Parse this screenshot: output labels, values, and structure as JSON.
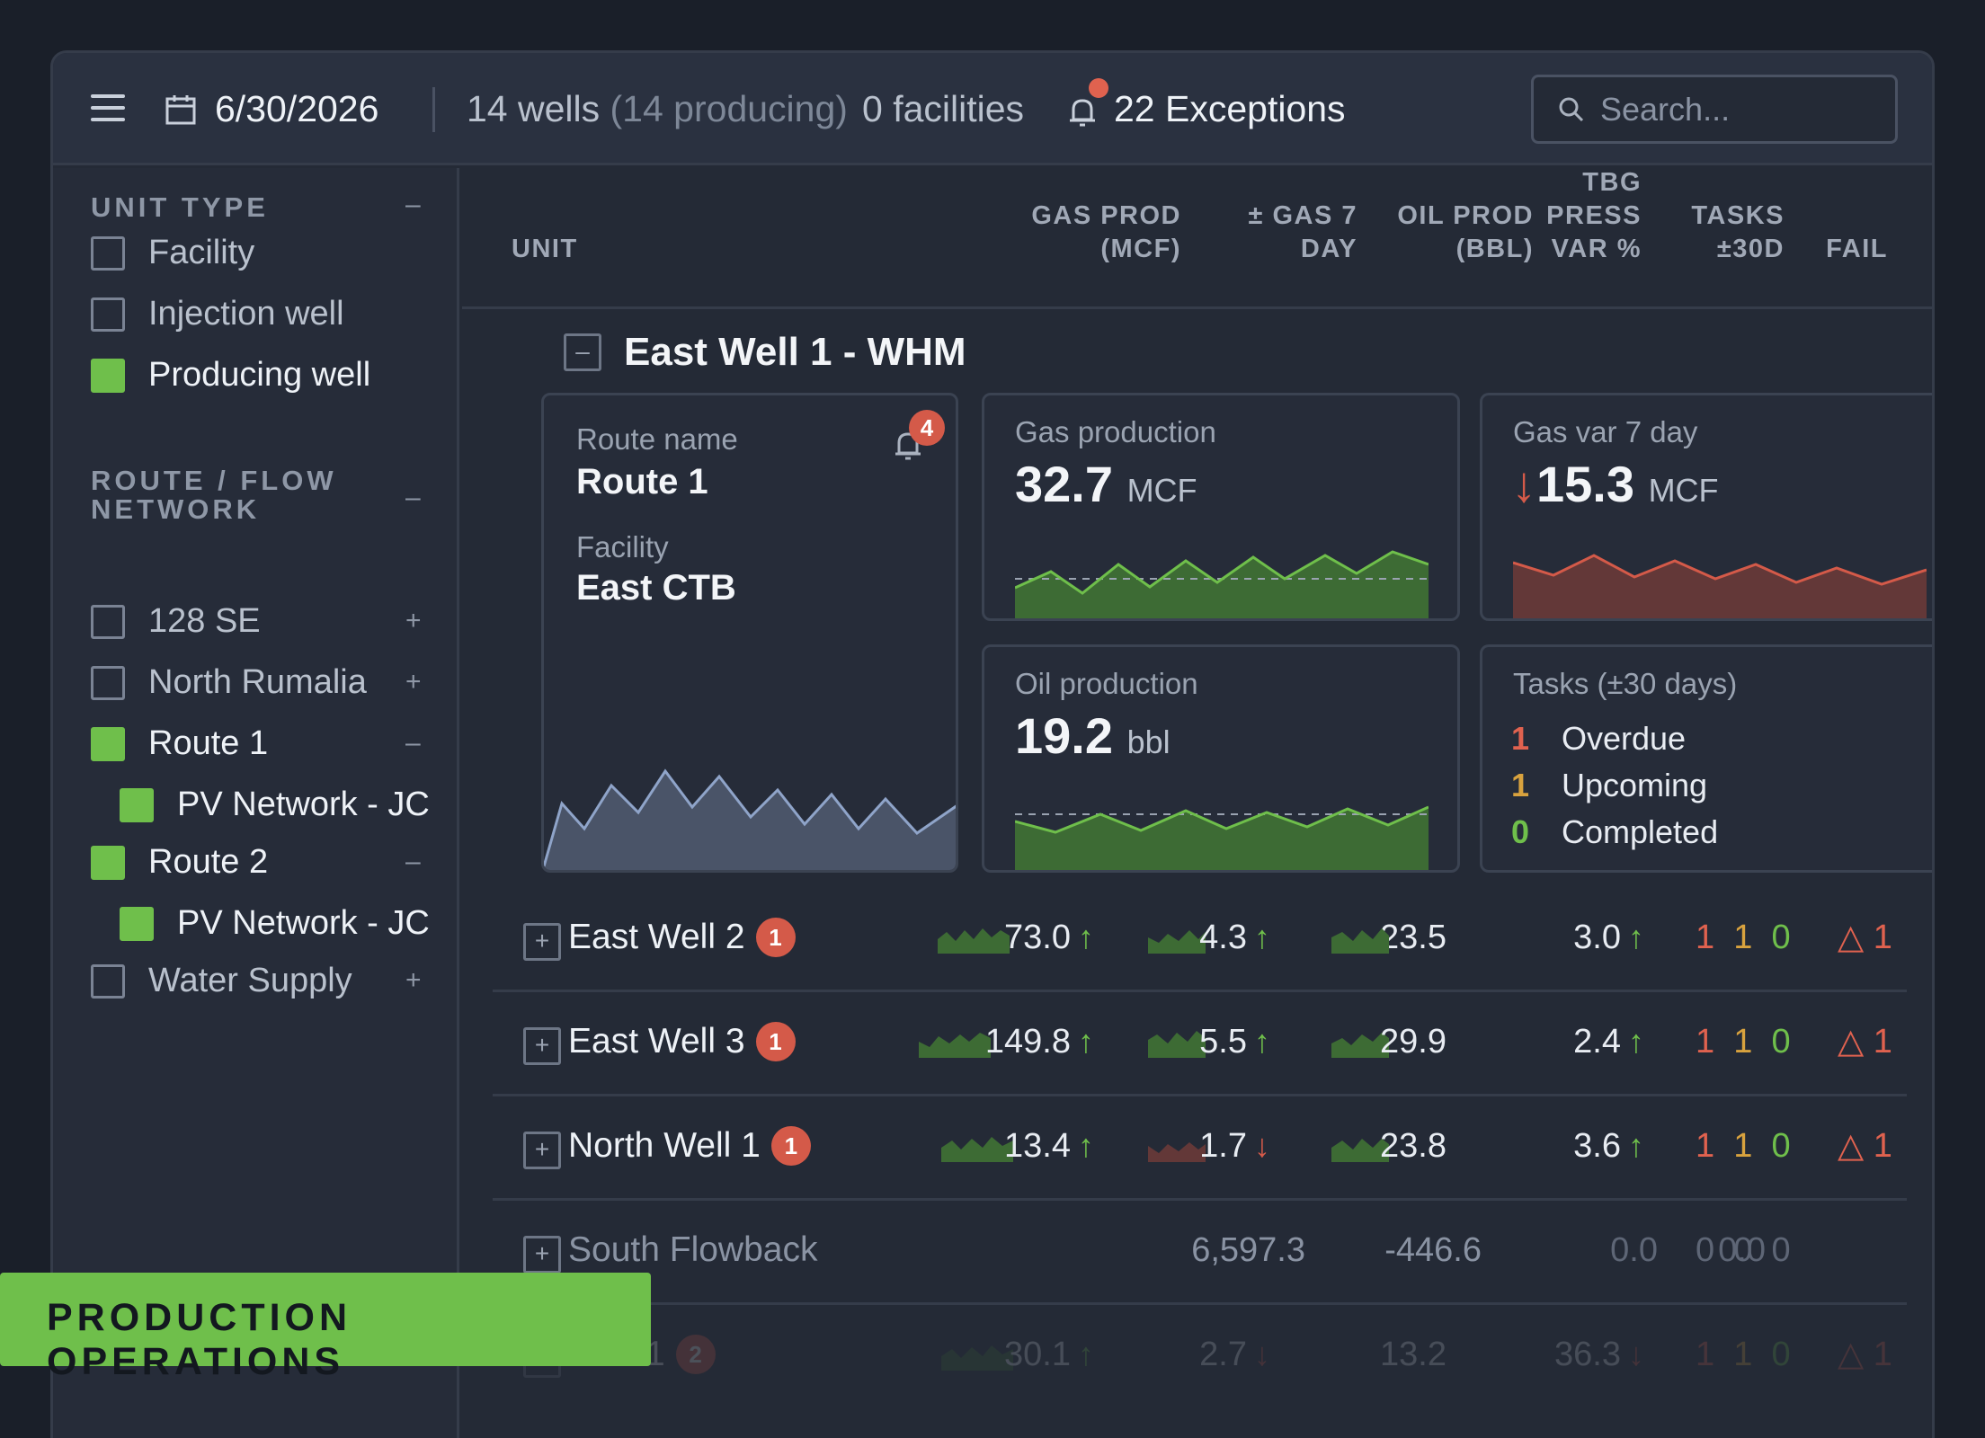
{
  "header": {
    "date": "6/30/2026",
    "wells_count": "14 wells",
    "wells_producing": "(14 producing)",
    "facilities": "0 facilities",
    "exceptions": "22 Exceptions",
    "search_placeholder": "Search..."
  },
  "sidebar": {
    "unit_type": {
      "title": "UNIT TYPE",
      "toggle": "–",
      "items": [
        {
          "label": "Facility",
          "checked": false
        },
        {
          "label": "Injection well",
          "checked": false
        },
        {
          "label": "Producing well",
          "checked": true
        }
      ]
    },
    "route": {
      "title_line1": "ROUTE / FLOW",
      "title_line2": "NETWORK",
      "toggle": "–",
      "items": [
        {
          "label": "128 SE",
          "checked": false,
          "toggle": "+"
        },
        {
          "label": "North Rumalia",
          "checked": false,
          "toggle": "+"
        },
        {
          "label": "Route 1",
          "checked": true,
          "toggle": "–"
        },
        {
          "label": "PV Network - JC",
          "checked": true,
          "sub": true
        },
        {
          "label": "Route 2",
          "checked": true,
          "toggle": "–"
        },
        {
          "label": "PV Network - JC",
          "checked": true,
          "sub": true
        },
        {
          "label": "Water Supply",
          "checked": false,
          "toggle": "+"
        }
      ]
    }
  },
  "columns": {
    "unit": "UNIT",
    "gas_prod_1": "GAS PROD",
    "gas_prod_2": "(MCF)",
    "gas7_1": "± GAS 7",
    "gas7_2": "DAY",
    "oil_1": "OIL PROD",
    "oil_2": "(BBL)",
    "tbg_1": "TBG",
    "tbg_2": "PRESS",
    "tbg_3": "VAR %",
    "tasks_1": "TASKS",
    "tasks_2": "±30D",
    "fail": "FAIL"
  },
  "group": {
    "title": "East Well 1 - WHM",
    "expander": "–",
    "route_card": {
      "route_label": "Route name",
      "route_value": "Route 1",
      "facility_label": "Facility",
      "facility_value": "East CTB",
      "alert_count": "4"
    },
    "gas_card": {
      "label": "Gas production",
      "value": "32.7",
      "unit": "MCF"
    },
    "gasvar_card": {
      "label": "Gas var 7 day",
      "arrow": "↓",
      "value": "15.3",
      "unit": "MCF"
    },
    "oil_card": {
      "label": "Oil production",
      "value": "19.2",
      "unit": "bbl"
    },
    "tasks_card": {
      "label": "Tasks (±30 days)",
      "overdue_n": "1",
      "overdue": "Overdue",
      "upcoming_n": "1",
      "upcoming": "Upcoming",
      "completed_n": "0",
      "completed": "Completed"
    }
  },
  "rows": [
    {
      "name": "East Well 2",
      "badge": "1",
      "gas": "73.0",
      "gas_arrow": "↑",
      "gas7": "4.3",
      "gas7_arrow": "↑",
      "oil": "23.5",
      "tbg": "3.0",
      "tbg_arrow": "↑",
      "t1": "1",
      "t2": "1",
      "t3": "0",
      "fail_icon": "△",
      "fail": "1"
    },
    {
      "name": "East Well 3",
      "badge": "1",
      "gas": "149.8",
      "gas_arrow": "↑",
      "gas7": "5.5",
      "gas7_arrow": "↑",
      "oil": "29.9",
      "tbg": "2.4",
      "tbg_arrow": "↑",
      "t1": "1",
      "t2": "1",
      "t3": "0",
      "fail_icon": "△",
      "fail": "1"
    },
    {
      "name": "North Well 1",
      "badge": "1",
      "gas": "13.4",
      "gas_arrow": "↑",
      "gas7": "1.7",
      "gas7_arrow": "↓",
      "oil": "23.8",
      "tbg": "3.6",
      "tbg_arrow": "↑",
      "t1": "1",
      "t2": "1",
      "t3": "0",
      "fail_icon": "△",
      "fail": "1"
    },
    {
      "name": "South Flowback",
      "gas": "6,597.3",
      "gas7": "-446.6",
      "oil": "0.0",
      "tbg": "0.0",
      "t1": "0",
      "t2": "0",
      "t3": "0"
    },
    {
      "name": "Well 1",
      "badge": "2",
      "gas": "30.1",
      "gas_arrow": "↑",
      "gas7": "2.7",
      "gas7_arrow": "↓",
      "oil": "13.2",
      "tbg": "36.3",
      "tbg_arrow": "↓",
      "t1": "1",
      "t2": "1",
      "t3": "0",
      "fail_icon": "△",
      "fail": "1"
    }
  ],
  "brand": "PRODUCTION OPERATIONS",
  "colors": {
    "accent_green": "#6fbf4b",
    "alert_red": "#e0624f",
    "amber": "#d8a23e"
  }
}
